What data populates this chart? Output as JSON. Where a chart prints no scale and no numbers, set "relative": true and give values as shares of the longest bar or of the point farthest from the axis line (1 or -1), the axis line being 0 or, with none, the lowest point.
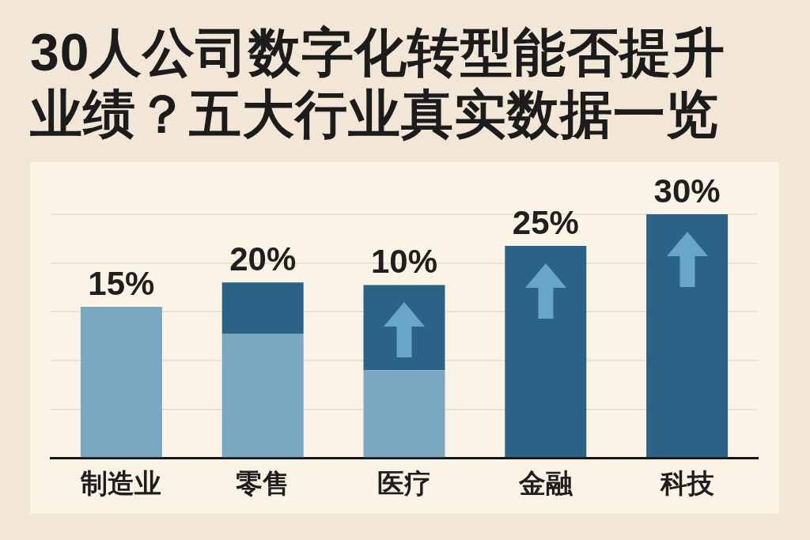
{
  "chart_data": {
    "type": "bar",
    "title": "30人公司数字化转型能否提升业绩？五大行业真实数据一览",
    "categories": [
      "制造业",
      "零售",
      "医疗",
      "金融",
      "科技"
    ],
    "stacked": true,
    "relative": true,
    "series": [
      {
        "color": "#7aa8c0",
        "values": [
          0.62,
          0.51,
          0.36,
          null,
          null
        ]
      },
      {
        "color": "#2b6386",
        "values": [
          null,
          0.21,
          0.35,
          0.87,
          1
        ]
      }
    ],
    "annotations": [
      {
        "text": "15%",
        "x": "制造业",
        "y": 0.62
      },
      {
        "text": "20%",
        "x": "零售",
        "y": 0.72
      },
      {
        "text": "10%",
        "x": "医疗",
        "y": 0.71
      },
      {
        "text": "25%",
        "x": "金融",
        "y": 0.87
      },
      {
        "text": "30%",
        "x": "科技",
        "y": 1
      }
    ],
    "grid": "y",
    "legend": false
  }
}
